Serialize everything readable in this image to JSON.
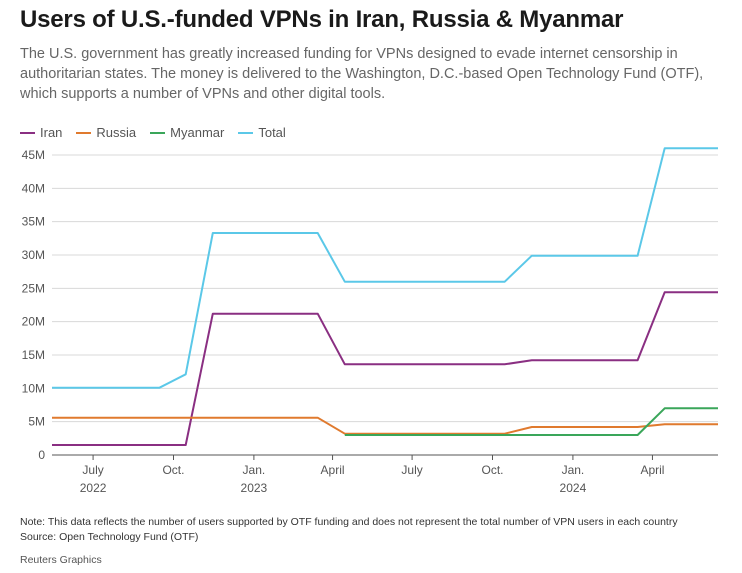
{
  "title": "Users of U.S.-funded VPNs in Iran, Russia & Myanmar",
  "subtitle": "The U.S. government has greatly increased funding for VPNs designed to evade internet censorship in authoritarian states. The money is delivered to the Washington, D.C.-based Open Technology Fund (OTF), which supports a number of VPNs and other digital tools.",
  "legend": [
    {
      "name": "Iran",
      "color": "#8a2f82"
    },
    {
      "name": "Russia",
      "color": "#e07a2e"
    },
    {
      "name": "Myanmar",
      "color": "#3aa65a"
    },
    {
      "name": "Total",
      "color": "#5bc8e8"
    }
  ],
  "note": "Note: This data reflects the number of users supported by OTF funding and does not represent the total number of VPN users in each country",
  "source": "Source: Open Technology Fund (OTF)",
  "credit": "Reuters Graphics",
  "chart_data": {
    "type": "line",
    "title": "Users of U.S.-funded VPNs in Iran, Russia & Myanmar",
    "xlabel": "",
    "ylabel": "",
    "ylim": [
      0,
      45
    ],
    "y_unit": "M",
    "xlim": [
      "2022-05-15",
      "2024-06-15"
    ],
    "yticks": [
      {
        "value": 0,
        "label": "0"
      },
      {
        "value": 5,
        "label": "5M"
      },
      {
        "value": 10,
        "label": "10M"
      },
      {
        "value": 15,
        "label": "15M"
      },
      {
        "value": 20,
        "label": "20M"
      },
      {
        "value": 25,
        "label": "25M"
      },
      {
        "value": 30,
        "label": "30M"
      },
      {
        "value": 35,
        "label": "35M"
      },
      {
        "value": 40,
        "label": "40M"
      },
      {
        "value": 45,
        "label": "45M"
      }
    ],
    "xticks": [
      {
        "date": "2022-07-01",
        "label": "July",
        "year": "2022"
      },
      {
        "date": "2022-10-01",
        "label": "Oct.",
        "year": ""
      },
      {
        "date": "2023-01-01",
        "label": "Jan.",
        "year": "2023"
      },
      {
        "date": "2023-04-01",
        "label": "April",
        "year": ""
      },
      {
        "date": "2023-07-01",
        "label": "July",
        "year": ""
      },
      {
        "date": "2023-10-01",
        "label": "Oct.",
        "year": ""
      },
      {
        "date": "2024-01-01",
        "label": "Jan.",
        "year": "2024"
      },
      {
        "date": "2024-04-01",
        "label": "April",
        "year": ""
      }
    ],
    "series": [
      {
        "name": "Total",
        "color": "#5bc8e8",
        "points": [
          [
            "2022-05-15",
            10.1
          ],
          [
            "2022-09-15",
            10.1
          ],
          [
            "2022-10-15",
            12.1
          ],
          [
            "2022-11-15",
            33.3
          ],
          [
            "2023-03-15",
            33.3
          ],
          [
            "2023-04-15",
            26.0
          ],
          [
            "2023-10-15",
            26.0
          ],
          [
            "2023-11-15",
            29.9
          ],
          [
            "2024-03-15",
            29.9
          ],
          [
            "2024-04-15",
            46.0
          ],
          [
            "2024-06-15",
            46.0
          ]
        ]
      },
      {
        "name": "Iran",
        "color": "#8a2f82",
        "points": [
          [
            "2022-05-15",
            1.5
          ],
          [
            "2022-10-15",
            1.5
          ],
          [
            "2022-11-15",
            21.2
          ],
          [
            "2023-03-15",
            21.2
          ],
          [
            "2023-04-15",
            13.6
          ],
          [
            "2023-10-15",
            13.6
          ],
          [
            "2023-11-15",
            14.2
          ],
          [
            "2024-03-15",
            14.2
          ],
          [
            "2024-04-15",
            24.4
          ],
          [
            "2024-06-15",
            24.4
          ]
        ]
      },
      {
        "name": "Russia",
        "color": "#e07a2e",
        "points": [
          [
            "2022-05-15",
            5.6
          ],
          [
            "2023-03-15",
            5.6
          ],
          [
            "2023-04-15",
            3.2
          ],
          [
            "2023-10-15",
            3.2
          ],
          [
            "2023-11-15",
            4.2
          ],
          [
            "2024-03-15",
            4.2
          ],
          [
            "2024-04-15",
            4.6
          ],
          [
            "2024-06-15",
            4.6
          ]
        ]
      },
      {
        "name": "Myanmar",
        "color": "#3aa65a",
        "points": [
          [
            "2023-04-15",
            3.0
          ],
          [
            "2024-03-15",
            3.0
          ],
          [
            "2024-04-15",
            7.0
          ],
          [
            "2024-06-15",
            7.0
          ]
        ]
      }
    ]
  }
}
